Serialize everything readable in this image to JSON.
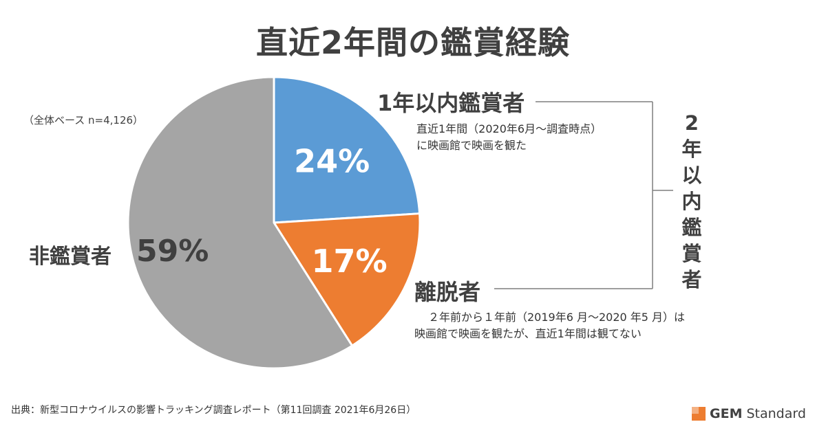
{
  "title": "直近2年間の鑑賞経験",
  "base_note": "（全体ベース n=4,126）",
  "chart_data": {
    "type": "pie",
    "title": "直近2年間の鑑賞経験",
    "slices": [
      {
        "label": "1年以内鑑賞者",
        "value": 24,
        "value_label": "24%",
        "color": "#5b9bd5"
      },
      {
        "label": "離脱者",
        "value": 17,
        "value_label": "17%",
        "color": "#ed7d31"
      },
      {
        "label": "非鑑賞者",
        "value": 59,
        "value_label": "59%",
        "color": "#a5a5a5"
      }
    ],
    "start": "12 o'clock",
    "direction": "clockwise"
  },
  "labels": {
    "viewer_1yr": "1年以内鑑賞者",
    "viewer_1yr_desc_1": "直近1年間（2020年6月～調査時点）",
    "viewer_1yr_desc_2": "に映画館で映画を観た",
    "lapsed": "離脱者",
    "lapsed_desc_1": "２年前から１年前（2019年6 月～2020 年5 月）は",
    "lapsed_desc_2": "映画館で映画を観たが、直近1年間は観てない",
    "non_viewer": "非鑑賞者",
    "non_viewer_pct": "59%",
    "bracket_label": [
      "2",
      "年",
      "以",
      "内",
      "鑑",
      "賞",
      "者"
    ]
  },
  "source": "出典：新型コロナウイルスの影響トラッキング調査レポート（第11回調査 2021年6月26日）",
  "brand": {
    "gem": "GEM",
    "standard": "Standard",
    "accent": "#ed7d31"
  }
}
